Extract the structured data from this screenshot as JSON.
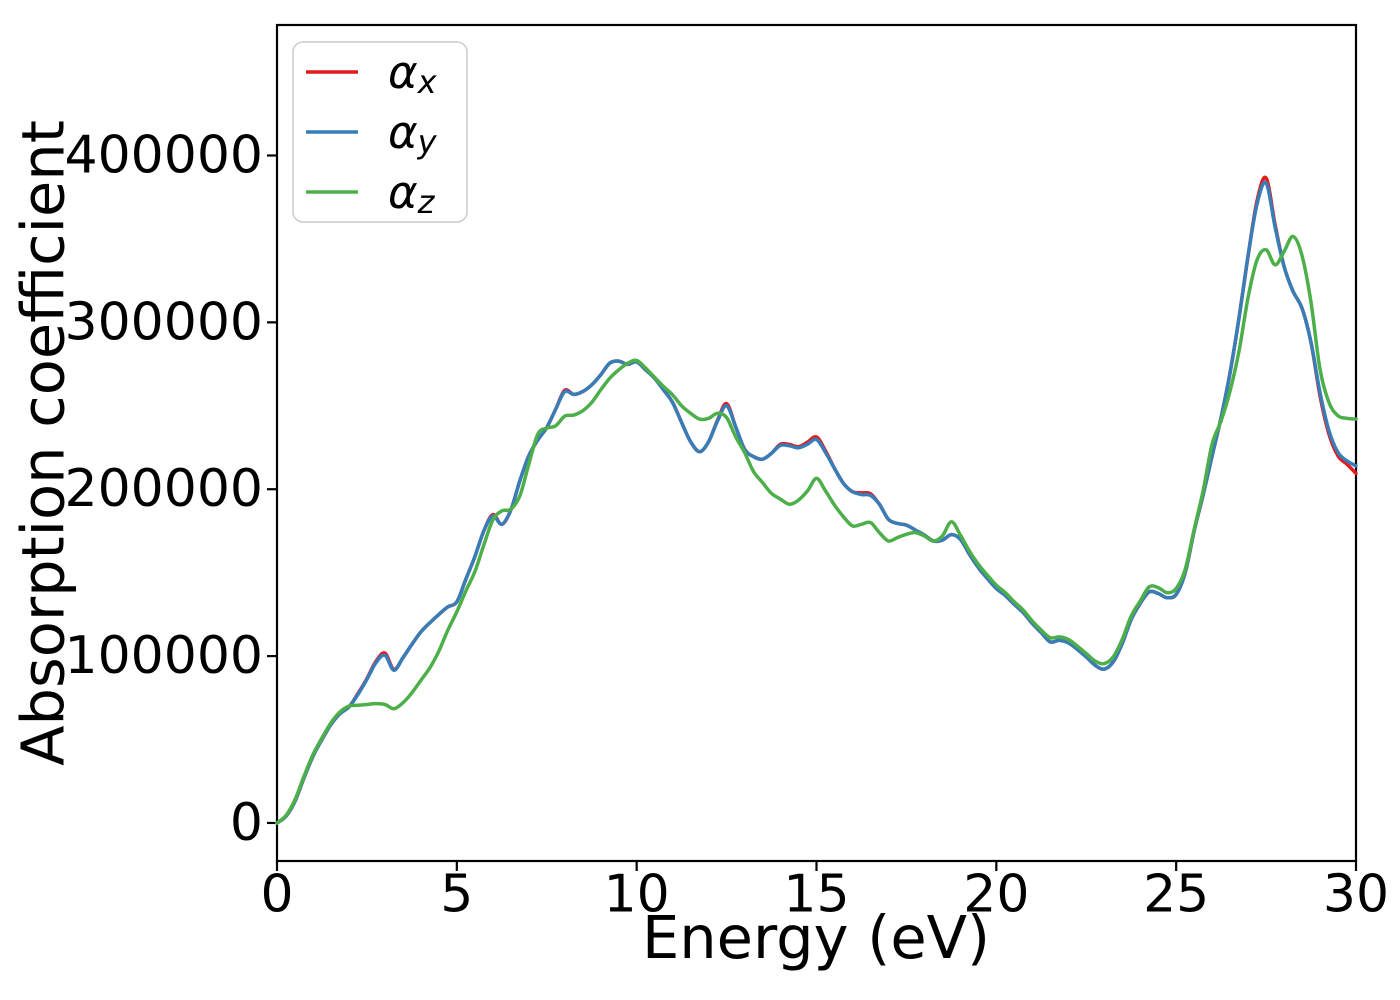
{
  "chart_data": {
    "type": "line",
    "title": "",
    "xlabel": "Energy (eV)",
    "ylabel": "Absorption coefficient",
    "xlim": [
      0,
      30
    ],
    "ylim": [
      -22800,
      478200
    ],
    "xticks": [
      0,
      5,
      10,
      15,
      20,
      25,
      30
    ],
    "yticks": [
      0,
      100000,
      200000,
      300000,
      400000
    ],
    "grid": false,
    "legend": {
      "position": "upper left",
      "entries": [
        {
          "id": "alpha-x",
          "base": "α",
          "sub": "x",
          "color": "#e41a1c"
        },
        {
          "id": "alpha-y",
          "base": "α",
          "sub": "y",
          "color": "#377eb8"
        },
        {
          "id": "alpha-z",
          "base": "α",
          "sub": "z",
          "color": "#4daf4a"
        }
      ]
    },
    "x": [
      0,
      0.25,
      0.5,
      0.75,
      1,
      1.25,
      1.5,
      1.75,
      2,
      2.25,
      2.5,
      2.75,
      3,
      3.25,
      3.5,
      3.75,
      4,
      4.25,
      4.5,
      4.75,
      5,
      5.25,
      5.5,
      5.75,
      6,
      6.25,
      6.5,
      6.75,
      7,
      7.25,
      7.5,
      7.75,
      8,
      8.25,
      8.5,
      8.75,
      9,
      9.25,
      9.5,
      9.75,
      10,
      10.25,
      10.5,
      10.75,
      11,
      11.25,
      11.5,
      11.75,
      12,
      12.25,
      12.5,
      12.75,
      13,
      13.25,
      13.5,
      13.75,
      14,
      14.25,
      14.5,
      14.75,
      15,
      15.25,
      15.5,
      15.75,
      16,
      16.25,
      16.5,
      16.75,
      17,
      17.25,
      17.5,
      17.75,
      18,
      18.25,
      18.5,
      18.75,
      19,
      19.25,
      19.5,
      19.75,
      20,
      20.25,
      20.5,
      20.75,
      21,
      21.25,
      21.5,
      21.75,
      22,
      22.25,
      22.5,
      22.75,
      23,
      23.25,
      23.5,
      23.75,
      24,
      24.25,
      24.5,
      24.75,
      25,
      25.25,
      25.5,
      25.75,
      26,
      26.25,
      26.5,
      26.75,
      27,
      27.25,
      27.5,
      27.75,
      28,
      28.25,
      28.5,
      28.75,
      29,
      29.25,
      29.5,
      29.75,
      30
    ],
    "series": [
      {
        "name": "alpha_x",
        "color": "#e41a1c",
        "values": [
          0,
          4000,
          13000,
          27000,
          40000,
          50000,
          59000,
          65500,
          69500,
          77500,
          86500,
          96800,
          101800,
          92000,
          99000,
          107000,
          114500,
          120000,
          125000,
          129500,
          132500,
          146000,
          159500,
          175000,
          184800,
          179000,
          187500,
          205000,
          220000,
          229500,
          237000,
          248000,
          259300,
          256800,
          258500,
          262500,
          268500,
          275500,
          276800,
          274800,
          276300,
          271500,
          266500,
          259500,
          252000,
          240000,
          228500,
          222500,
          228500,
          241500,
          251300,
          237500,
          224000,
          219500,
          218000,
          221500,
          227000,
          226800,
          225500,
          228200,
          231300,
          223000,
          212500,
          203500,
          198500,
          197800,
          197300,
          191000,
          182000,
          179500,
          178500,
          175500,
          172500,
          169000,
          169500,
          172800,
          170000,
          161000,
          153000,
          146500,
          140500,
          136300,
          131000,
          126000,
          119500,
          114000,
          108500,
          109500,
          108000,
          104000,
          99500,
          94500,
          92200,
          96500,
          107500,
          122000,
          131500,
          138500,
          137500,
          135000,
          137000,
          150000,
          175000,
          196500,
          220000,
          243000,
          270000,
          303000,
          340000,
          373000,
          386500,
          358500,
          333500,
          318500,
          308500,
          288000,
          256000,
          233000,
          220000,
          215000,
          209500
        ]
      },
      {
        "name": "alpha_y",
        "color": "#377eb8",
        "values": [
          0,
          4000,
          13000,
          27000,
          40000,
          50000,
          59000,
          65500,
          69500,
          77000,
          86000,
          96000,
          100500,
          91500,
          99000,
          107000,
          114500,
          120000,
          125000,
          129500,
          132500,
          146000,
          159500,
          175000,
          184000,
          179000,
          187500,
          205000,
          220000,
          229500,
          237000,
          248000,
          258500,
          256800,
          258500,
          262500,
          268500,
          275500,
          276800,
          274800,
          276300,
          271500,
          266500,
          259500,
          252000,
          240000,
          228500,
          222500,
          228500,
          241000,
          250000,
          237500,
          224000,
          219500,
          218000,
          221500,
          226300,
          226000,
          224800,
          227000,
          229800,
          222000,
          212500,
          203500,
          198500,
          196800,
          196300,
          191000,
          182000,
          179500,
          178500,
          175500,
          172500,
          169000,
          169500,
          172800,
          170000,
          161000,
          153000,
          146500,
          140500,
          136300,
          131000,
          126000,
          119500,
          114000,
          108500,
          109500,
          108000,
          104000,
          99500,
          94500,
          92200,
          96500,
          107500,
          122000,
          131500,
          138500,
          137500,
          135000,
          137000,
          150000,
          175000,
          196500,
          220000,
          243000,
          270000,
          303000,
          340000,
          371000,
          383500,
          357000,
          333500,
          318500,
          308500,
          288000,
          258000,
          235000,
          222000,
          217000,
          214000
        ]
      },
      {
        "name": "alpha_z",
        "color": "#4daf4a",
        "values": [
          0,
          4500,
          14000,
          28000,
          41000,
          51000,
          60000,
          66500,
          70000,
          70500,
          71000,
          71500,
          71000,
          68500,
          72000,
          78000,
          85500,
          93000,
          103000,
          115500,
          126500,
          139000,
          150500,
          166500,
          181500,
          187000,
          188000,
          196000,
          215000,
          233000,
          236600,
          238000,
          243800,
          244400,
          247000,
          252000,
          259500,
          266500,
          271500,
          275500,
          277200,
          272500,
          267000,
          261500,
          256500,
          250000,
          245500,
          242000,
          242500,
          245500,
          243000,
          231500,
          222000,
          210500,
          204000,
          197500,
          194000,
          191000,
          193500,
          199000,
          206500,
          199000,
          190500,
          183500,
          178000,
          179000,
          180000,
          174000,
          169000,
          171000,
          173000,
          174000,
          172000,
          169000,
          172000,
          180500,
          172500,
          163000,
          155000,
          148500,
          142500,
          138000,
          132500,
          127500,
          121000,
          115500,
          111000,
          111500,
          110000,
          106000,
          101500,
          97000,
          95500,
          99500,
          110000,
          124000,
          133000,
          141500,
          141000,
          138000,
          140500,
          152000,
          176000,
          199000,
          227000,
          241000,
          259000,
          283000,
          315000,
          337500,
          343500,
          334500,
          342500,
          351500,
          340000,
          312000,
          272000,
          252000,
          244000,
          242500,
          242000
        ]
      }
    ]
  },
  "layout_text": {
    "note": ""
  }
}
